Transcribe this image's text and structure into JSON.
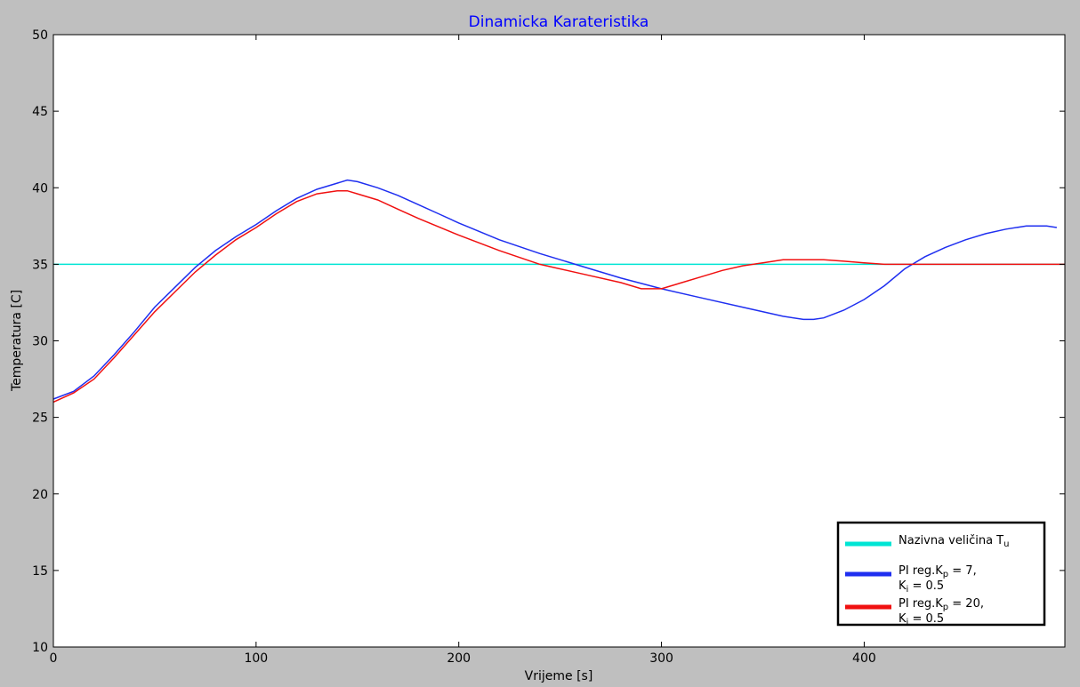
{
  "chart_data": {
    "type": "line",
    "title": "Dinamicka Karateristika",
    "xlabel": "Vrijeme [s]",
    "ylabel": "Temperatura [C]",
    "xlim": [
      0,
      499
    ],
    "ylim": [
      10,
      50
    ],
    "xticks": [
      0,
      100,
      200,
      300,
      400
    ],
    "yticks": [
      10,
      15,
      20,
      25,
      30,
      35,
      40,
      45,
      50
    ],
    "grid": false,
    "legend_position": "lower right",
    "series": [
      {
        "name": "Nazivna veličina Tu",
        "color": "#00e5d4",
        "x": [
          0,
          499
        ],
        "y": [
          35,
          35
        ]
      },
      {
        "name": "PI reg.Kp = 7, Ki = 0.5",
        "color": "#1f2ff0",
        "x": [
          0,
          10,
          20,
          30,
          40,
          50,
          60,
          70,
          80,
          90,
          100,
          110,
          120,
          130,
          140,
          145,
          150,
          160,
          170,
          180,
          190,
          200,
          220,
          240,
          260,
          280,
          300,
          320,
          340,
          360,
          370,
          375,
          380,
          390,
          400,
          410,
          420,
          430,
          440,
          450,
          460,
          470,
          480,
          490,
          495
        ],
        "y": [
          26.2,
          26.7,
          27.7,
          29.1,
          30.6,
          32.2,
          33.5,
          34.8,
          35.9,
          36.8,
          37.6,
          38.5,
          39.3,
          39.9,
          40.3,
          40.5,
          40.4,
          40.0,
          39.5,
          38.9,
          38.3,
          37.7,
          36.6,
          35.7,
          34.9,
          34.1,
          33.4,
          32.8,
          32.2,
          31.6,
          31.4,
          31.4,
          31.5,
          32.0,
          32.7,
          33.6,
          34.7,
          35.5,
          36.1,
          36.6,
          37.0,
          37.3,
          37.5,
          37.5,
          37.4
        ]
      },
      {
        "name": "PI reg.Kp = 20, Ki = 0.5",
        "color": "#f01010",
        "x": [
          0,
          10,
          20,
          30,
          40,
          50,
          60,
          70,
          80,
          90,
          100,
          110,
          120,
          130,
          140,
          145,
          150,
          160,
          170,
          180,
          200,
          220,
          240,
          260,
          280,
          290,
          300,
          310,
          320,
          330,
          340,
          350,
          360,
          370,
          380,
          390,
          400,
          410,
          420,
          440,
          460,
          480,
          499
        ],
        "y": [
          26.0,
          26.6,
          27.5,
          28.9,
          30.4,
          31.9,
          33.2,
          34.5,
          35.6,
          36.6,
          37.4,
          38.3,
          39.1,
          39.6,
          39.8,
          39.8,
          39.6,
          39.2,
          38.6,
          38.0,
          36.9,
          35.9,
          35.0,
          34.4,
          33.8,
          33.4,
          33.4,
          33.8,
          34.2,
          34.6,
          34.9,
          35.1,
          35.3,
          35.3,
          35.3,
          35.2,
          35.1,
          35.0,
          35.0,
          35.0,
          35.0,
          35.0,
          35.0
        ]
      }
    ],
    "legend_labels": [
      {
        "main": "Nazivna veličina T",
        "sub": "u",
        "line2_main": "",
        "line2_sub": "",
        "line2_rest": ""
      },
      {
        "main": "PI reg.K",
        "sub": "p",
        "rest": " = 7,",
        "line2_main": "K",
        "line2_sub": "i",
        "line2_rest": " = 0.5"
      },
      {
        "main": "PI reg.K",
        "sub": "p",
        "rest": " = 20,",
        "line2_main": "K",
        "line2_sub": "i",
        "line2_rest": " = 0.5"
      }
    ]
  }
}
